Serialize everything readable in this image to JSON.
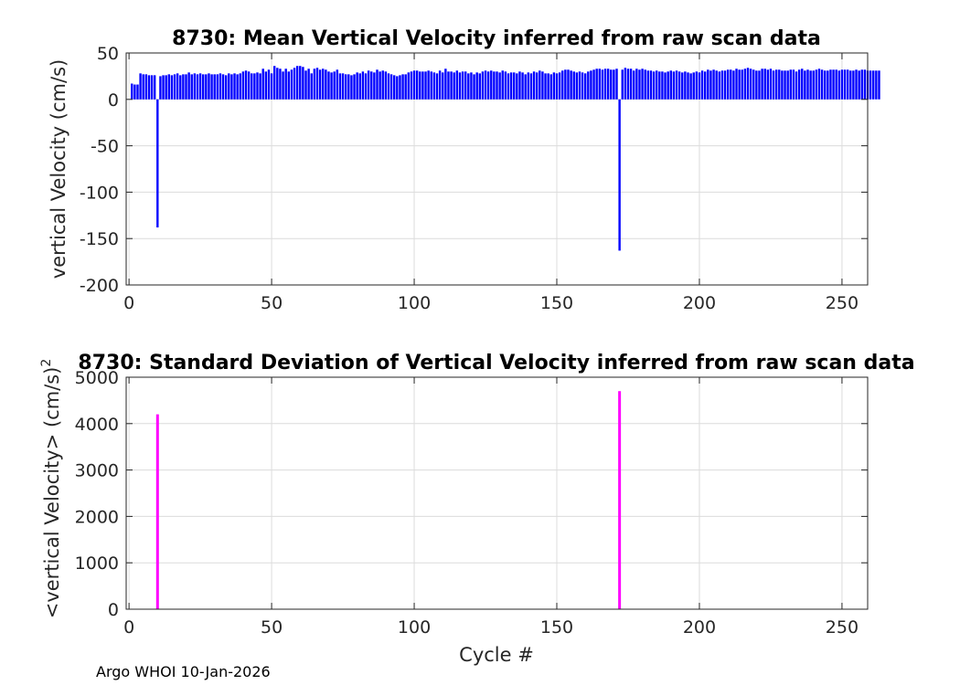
{
  "footer": "Argo WHOI 10-Jan-2026",
  "chart_data": [
    {
      "type": "bar",
      "title": "8730: Mean Vertical Velocity inferred from raw scan data",
      "xlabel": "",
      "ylabel": "vertical Velocity (cm/s)",
      "xlim": [
        -1,
        259
      ],
      "ylim": [
        -200,
        50
      ],
      "xticks": [
        0,
        50,
        100,
        150,
        200,
        250
      ],
      "yticks": [
        -200,
        -150,
        -100,
        -50,
        0,
        50
      ],
      "grid": true,
      "color": "#0000ff",
      "x_start": 1,
      "values": [
        17,
        16,
        16,
        28,
        27,
        27,
        26,
        26,
        26,
        -138,
        25,
        26,
        26,
        27,
        26,
        27,
        28,
        26,
        27,
        27,
        29,
        27,
        28,
        27,
        28,
        27,
        27,
        28,
        27,
        27,
        27,
        28,
        27,
        26,
        28,
        27,
        28,
        27,
        28,
        30,
        31,
        30,
        28,
        28,
        29,
        28,
        33,
        30,
        32,
        28,
        36,
        34,
        33,
        30,
        33,
        30,
        32,
        34,
        36,
        36,
        35,
        31,
        33,
        28,
        33,
        34,
        32,
        33,
        32,
        30,
        29,
        30,
        32,
        28,
        28,
        27,
        27,
        26,
        27,
        29,
        28,
        30,
        28,
        31,
        30,
        29,
        32,
        30,
        31,
        30,
        28,
        27,
        26,
        25,
        26,
        27,
        27,
        29,
        30,
        31,
        31,
        30,
        30,
        30,
        31,
        30,
        29,
        28,
        31,
        29,
        33,
        30,
        30,
        29,
        31,
        29,
        30,
        30,
        28,
        29,
        27,
        29,
        28,
        30,
        31,
        30,
        31,
        30,
        30,
        29,
        31,
        30,
        28,
        29,
        29,
        28,
        30,
        29,
        27,
        29,
        28,
        30,
        29,
        31,
        30,
        28,
        28,
        27,
        29,
        28,
        29,
        31,
        32,
        32,
        31,
        30,
        29,
        30,
        29,
        28,
        30,
        31,
        32,
        33,
        33,
        32,
        33,
        33,
        32,
        32,
        33,
        -163,
        32,
        34,
        33,
        33,
        31,
        33,
        32,
        33,
        32,
        31,
        31,
        30,
        31,
        30,
        30,
        29,
        30,
        31,
        30,
        31,
        30,
        29,
        30,
        29,
        28,
        29,
        30,
        29,
        31,
        30,
        32,
        31,
        32,
        31,
        30,
        31,
        31,
        32,
        32,
        31,
        33,
        32,
        32,
        33,
        34,
        33,
        32,
        31,
        31,
        33,
        33,
        32,
        33,
        31,
        32,
        32,
        31,
        31,
        31,
        32,
        32,
        30,
        32,
        33,
        31,
        32,
        31,
        31,
        32,
        33,
        32,
        31,
        31,
        32,
        32,
        32,
        31,
        32,
        32,
        32,
        31,
        31,
        32,
        31,
        32,
        32,
        31,
        31,
        31,
        31,
        31
      ]
    },
    {
      "type": "bar",
      "title": "8730: Standard Deviation of Vertical Velocity inferred from raw scan data",
      "xlabel": "Cycle #",
      "ylabel": "<vertical Velocity> (cm/s)",
      "ylabel_superscript": "2",
      "xlim": [
        -1,
        259
      ],
      "ylim": [
        0,
        5000
      ],
      "xticks": [
        0,
        50,
        100,
        150,
        200,
        250
      ],
      "yticks": [
        0,
        1000,
        2000,
        3000,
        4000,
        5000
      ],
      "grid": true,
      "color": "#ff00ff",
      "x": [
        10,
        172
      ],
      "values": [
        4200,
        4700
      ]
    }
  ]
}
